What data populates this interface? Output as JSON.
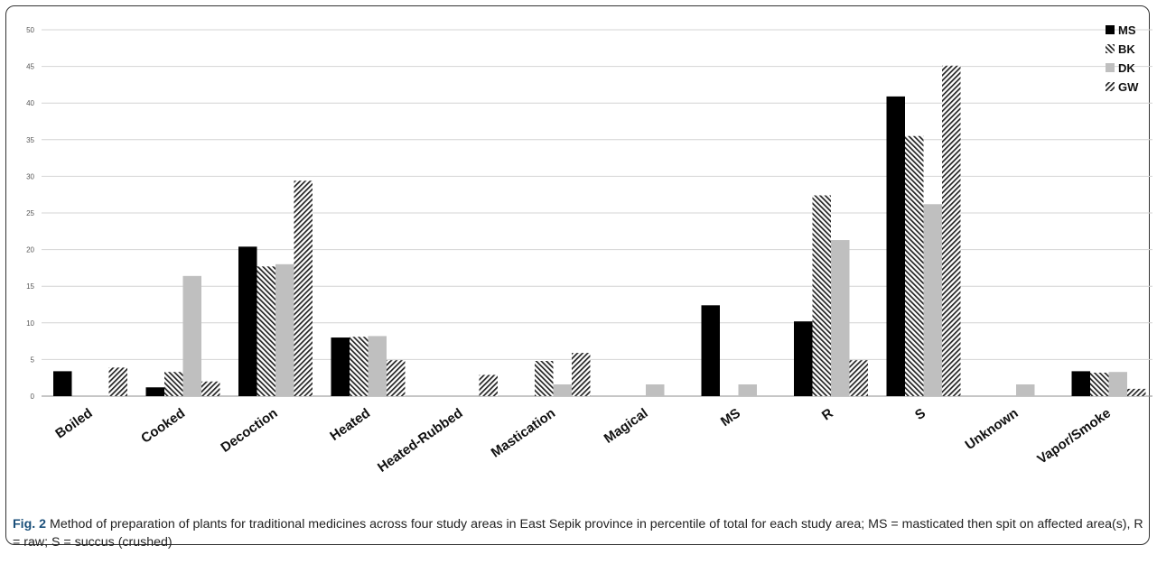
{
  "chart_data": {
    "type": "bar",
    "categories": [
      "Boiled",
      "Cooked",
      "Decoction",
      "Heated",
      "Heated-Rubbed",
      "Mastication",
      "Magical",
      "MS",
      "R",
      "S",
      "Unknown",
      "Vapor/Smoke"
    ],
    "series": [
      {
        "name": "MS",
        "values": [
          3.4,
          1.2,
          20.4,
          8.0,
          0,
          0,
          0,
          12.4,
          10.2,
          40.9,
          0,
          3.4
        ],
        "color": "#000000",
        "pattern": "solid"
      },
      {
        "name": "BK",
        "values": [
          0,
          3.3,
          17.7,
          8.1,
          0,
          4.8,
          0,
          0,
          27.4,
          35.5,
          0,
          3.2
        ],
        "color": "#333333",
        "pattern": "back-diagonal-hatch"
      },
      {
        "name": "DK",
        "values": [
          0,
          16.4,
          18.0,
          8.2,
          0,
          1.6,
          1.6,
          1.6,
          21.3,
          26.2,
          1.6,
          3.3
        ],
        "color": "#bfbfbf",
        "pattern": "solid"
      },
      {
        "name": "GW",
        "values": [
          3.9,
          2.0,
          29.4,
          4.9,
          2.9,
          5.9,
          0,
          0,
          4.9,
          45.1,
          0,
          1.0
        ],
        "color": "#333333",
        "pattern": "forward-diagonal-hatch"
      }
    ],
    "yticks": [
      0,
      5,
      10,
      15,
      20,
      25,
      30,
      35,
      40,
      45,
      50
    ],
    "ylim": [
      0,
      50
    ],
    "grid": true,
    "legend_position": "top-right"
  },
  "caption": {
    "label": "Fig. 2",
    "text": " Method of preparation of plants for traditional medicines across four study areas in East Sepik province in percentile of total for each study area; MS = masticated then spit on affected area(s), R = raw; S = succus (crushed)"
  }
}
